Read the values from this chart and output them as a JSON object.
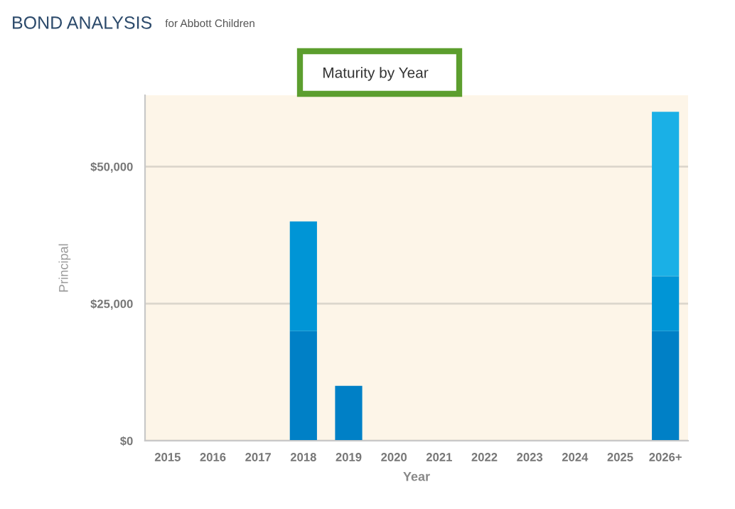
{
  "chart_data": {
    "type": "bar",
    "title": "Maturity by Year",
    "xlabel": "Year",
    "ylabel": "Principal",
    "annotations": [
      "BOND ANALYSIS",
      "for Abbott Children"
    ],
    "categories": [
      "2015",
      "2016",
      "2017",
      "2018",
      "2019",
      "2020",
      "2021",
      "2022",
      "2023",
      "2024",
      "2025",
      "2026+"
    ],
    "stacked": true,
    "series": [
      {
        "color": "#0080c6",
        "values": [
          0,
          0,
          0,
          20000,
          10000,
          0,
          0,
          0,
          0,
          0,
          0,
          20000
        ]
      },
      {
        "color": "#0095d6",
        "values": [
          0,
          0,
          0,
          20000,
          0,
          0,
          0,
          0,
          0,
          0,
          0,
          10000
        ]
      },
      {
        "color": "#1ab0e6",
        "values": [
          0,
          0,
          0,
          0,
          0,
          0,
          0,
          0,
          0,
          0,
          0,
          30000
        ]
      }
    ],
    "ylim": [
      0,
      63000
    ],
    "yticks": [
      {
        "value": 0,
        "label": "$0"
      },
      {
        "value": 25000,
        "label": "$25,000"
      },
      {
        "value": 50000,
        "label": "$50,000"
      }
    ],
    "grid": "y",
    "legend": false
  }
}
